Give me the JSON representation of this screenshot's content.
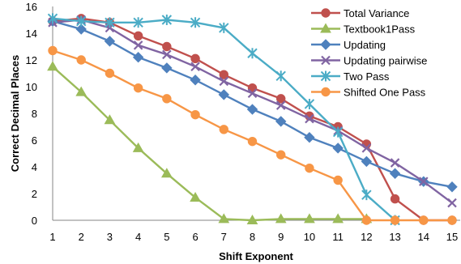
{
  "chart_data": {
    "type": "line",
    "xlabel": "Shift Exponent",
    "ylabel": "Correct Decimal Places",
    "x": [
      1,
      2,
      3,
      4,
      5,
      6,
      7,
      8,
      9,
      10,
      11,
      12,
      13,
      14,
      15
    ],
    "xlim": [
      1,
      15
    ],
    "ylim": [
      0,
      16
    ],
    "yticks": [
      0,
      2,
      4,
      6,
      8,
      10,
      12,
      14,
      16
    ],
    "grid": false,
    "legend_position": "top-right",
    "series": [
      {
        "name": "Total Variance",
        "color": "#c0504d",
        "marker": "circle",
        "values": [
          14.9,
          15.1,
          14.8,
          13.8,
          13.0,
          12.1,
          10.9,
          9.9,
          9.1,
          7.8,
          7.0,
          5.7,
          1.6,
          0.0,
          0.0
        ]
      },
      {
        "name": "Textbook1Pass",
        "color": "#9bbb59",
        "marker": "triangle",
        "values": [
          11.5,
          9.6,
          7.5,
          5.4,
          3.5,
          1.7,
          0.1,
          0.0,
          0.1,
          0.1,
          0.1,
          0.1,
          null,
          null,
          null
        ]
      },
      {
        "name": "Updating",
        "color": "#4f81bd",
        "marker": "diamond",
        "values": [
          14.9,
          14.3,
          13.4,
          12.2,
          11.4,
          10.5,
          9.4,
          8.3,
          7.4,
          6.2,
          5.4,
          4.4,
          3.5,
          2.9,
          2.5
        ]
      },
      {
        "name": "Updating pairwise",
        "color": "#8064a2",
        "marker": "x",
        "values": [
          14.8,
          15.0,
          14.4,
          13.1,
          12.4,
          11.5,
          10.4,
          9.5,
          8.6,
          7.6,
          6.7,
          5.4,
          4.3,
          2.9,
          1.3
        ]
      },
      {
        "name": "Two Pass",
        "color": "#4bacc6",
        "marker": "star",
        "values": [
          15.1,
          14.9,
          14.8,
          14.8,
          15.0,
          14.8,
          14.4,
          12.5,
          10.8,
          8.7,
          6.6,
          1.9,
          0.0,
          null,
          null
        ]
      },
      {
        "name": "Shifted One Pass",
        "color": "#f79646",
        "marker": "circle",
        "values": [
          12.7,
          12.0,
          11.0,
          9.9,
          9.1,
          7.9,
          6.8,
          5.9,
          4.9,
          3.9,
          3.0,
          0.0,
          0.0,
          0.0,
          0.0
        ]
      }
    ]
  }
}
